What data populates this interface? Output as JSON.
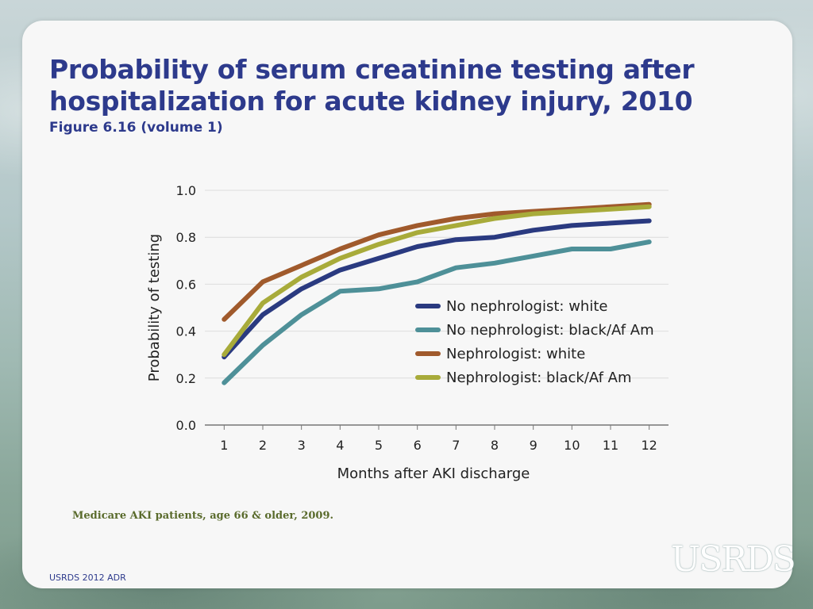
{
  "slide": {
    "title": "Probability of serum creatinine testing after hospitalization for acute kidney injury, 2010",
    "subtitle": "Figure 6.16 (volume 1)",
    "note": "Medicare AKI patients, age 66 & older, 2009.",
    "footer": "USRDS 2012 ADR",
    "logo": "USRDS"
  },
  "chart_data": {
    "type": "line",
    "title": "",
    "xlabel": "Months after AKI discharge",
    "ylabel": "Probability of testing",
    "x": [
      1,
      2,
      3,
      4,
      5,
      6,
      7,
      8,
      9,
      10,
      11,
      12
    ],
    "xlim": [
      0.5,
      12.5
    ],
    "ylim": [
      0,
      1
    ],
    "yticks": [
      "0.0",
      "0.2",
      "0.4",
      "0.6",
      "0.8",
      "1.0"
    ],
    "ytick_values": [
      0,
      0.2,
      0.4,
      0.6,
      0.8,
      1.0
    ],
    "grid": true,
    "legend_position": "lower-right",
    "series": [
      {
        "name": "No nephrologist: white",
        "color": "#2a3a80",
        "values": [
          0.29,
          0.47,
          0.58,
          0.66,
          0.71,
          0.76,
          0.79,
          0.8,
          0.83,
          0.85,
          0.86,
          0.87
        ]
      },
      {
        "name": "No nephrologist: black/Af Am",
        "color": "#4e9098",
        "values": [
          0.18,
          0.34,
          0.47,
          0.57,
          0.58,
          0.61,
          0.67,
          0.69,
          0.72,
          0.75,
          0.75,
          0.78
        ]
      },
      {
        "name": "Nephrologist: white",
        "color": "#a05a2c",
        "values": [
          0.45,
          0.61,
          0.68,
          0.75,
          0.81,
          0.85,
          0.88,
          0.9,
          0.91,
          0.92,
          0.93,
          0.94
        ]
      },
      {
        "name": "Nephrologist: black/Af Am",
        "color": "#a8ab3a",
        "values": [
          0.3,
          0.52,
          0.63,
          0.71,
          0.77,
          0.82,
          0.85,
          0.88,
          0.9,
          0.91,
          0.92,
          0.93
        ]
      }
    ]
  }
}
